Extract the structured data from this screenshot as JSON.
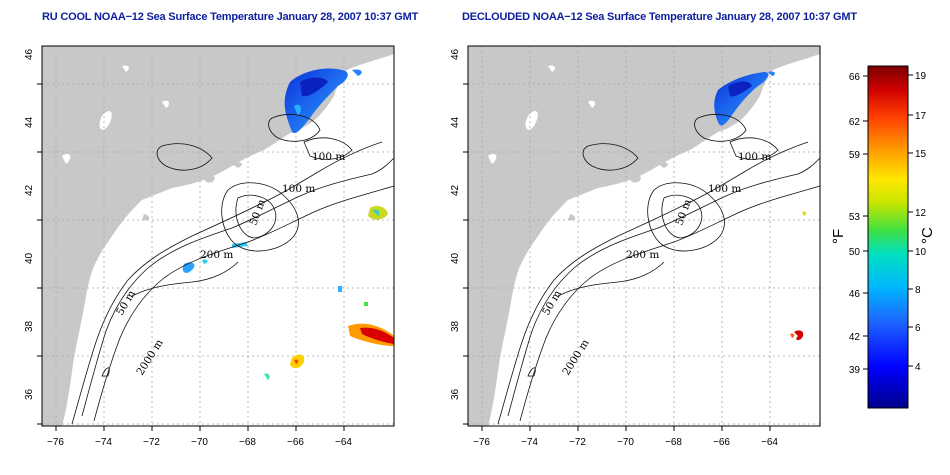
{
  "panels": [
    {
      "title": "RU COOL NOAA−12 Sea Surface Temperature January 28, 2007 10:37 GMT",
      "contour_labels": [
        "100 m",
        "100 m",
        "50 m",
        "200 m",
        "50 m",
        "2000 m"
      ]
    },
    {
      "title": "DECLOUDED NOAA−12 Sea Surface Temperature January 28, 2007 10:37 GMT",
      "contour_labels": [
        "100 m",
        "100 m",
        "50 m",
        "200 m",
        "50 m",
        "2000 m"
      ]
    }
  ],
  "x_ticks": [
    "−76",
    "−74",
    "−72",
    "−70",
    "−68",
    "−66",
    "−64"
  ],
  "y_ticks": [
    "36",
    "38",
    "40",
    "42",
    "44",
    "46"
  ],
  "colorbar": {
    "fahrenheit_label": "°F",
    "celsius_label": "°C",
    "fahrenheit_ticks": [
      "66",
      "62",
      "59",
      "53",
      "50",
      "46",
      "42",
      "39"
    ],
    "celsius_ticks": [
      "19",
      "17",
      "15",
      "12",
      "10",
      "8",
      "6",
      "4"
    ]
  },
  "colors": {
    "title": "#0d1f9e",
    "land": "#c8c8c8",
    "grid": "#b0b0b0",
    "colormap": [
      "#00008b",
      "#0000ff",
      "#1e64ff",
      "#00b4ff",
      "#00e0c0",
      "#40e040",
      "#c8e600",
      "#ffe600",
      "#ffa000",
      "#ff4000",
      "#d00000",
      "#7a0000"
    ]
  }
}
